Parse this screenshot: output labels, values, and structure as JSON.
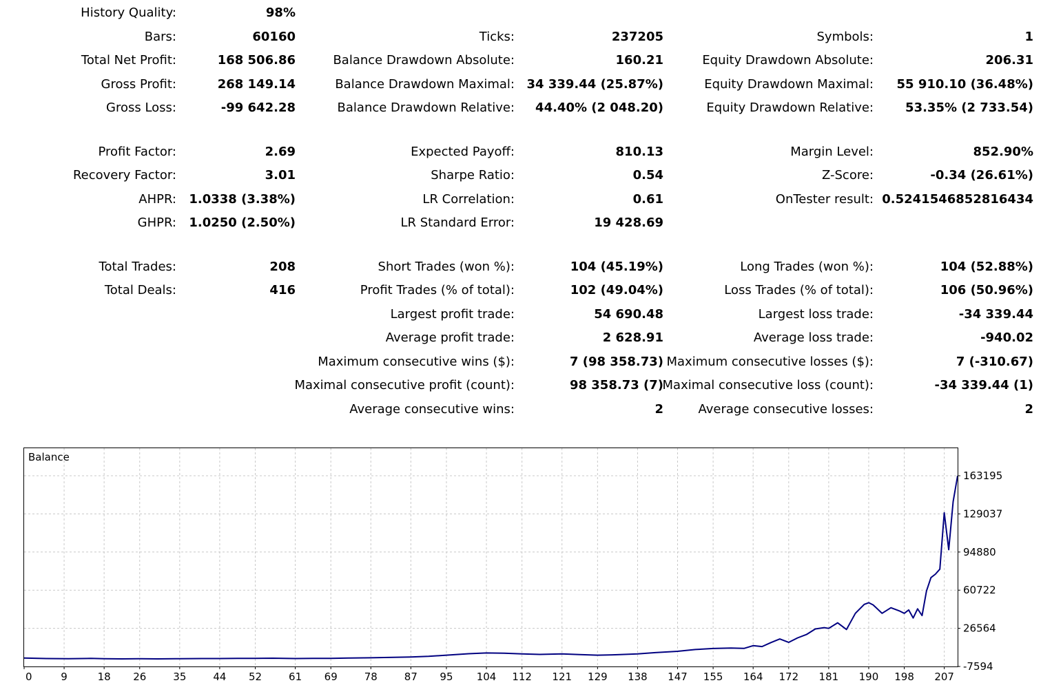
{
  "report": {
    "history_quality": {
      "label": "History Quality:",
      "value": "98%"
    },
    "bars": {
      "label": "Bars:",
      "value": "60160"
    },
    "ticks": {
      "label": "Ticks:",
      "value": "237205"
    },
    "symbols": {
      "label": "Symbols:",
      "value": "1"
    },
    "total_net_profit": {
      "label": "Total Net Profit:",
      "value": "168 506.86"
    },
    "balance_dd_abs": {
      "label": "Balance Drawdown Absolute:",
      "value": "160.21"
    },
    "equity_dd_abs": {
      "label": "Equity Drawdown Absolute:",
      "value": "206.31"
    },
    "gross_profit": {
      "label": "Gross Profit:",
      "value": "268 149.14"
    },
    "balance_dd_max": {
      "label": "Balance Drawdown Maximal:",
      "value": "34 339.44 (25.87%)"
    },
    "equity_dd_max": {
      "label": "Equity Drawdown Maximal:",
      "value": "55 910.10 (36.48%)"
    },
    "gross_loss": {
      "label": "Gross Loss:",
      "value": "-99 642.28"
    },
    "balance_dd_rel": {
      "label": "Balance Drawdown Relative:",
      "value": "44.40% (2 048.20)"
    },
    "equity_dd_rel": {
      "label": "Equity Drawdown Relative:",
      "value": "53.35% (2 733.54)"
    },
    "profit_factor": {
      "label": "Profit Factor:",
      "value": "2.69"
    },
    "expected_payoff": {
      "label": "Expected Payoff:",
      "value": "810.13"
    },
    "margin_level": {
      "label": "Margin Level:",
      "value": "852.90%"
    },
    "recovery_factor": {
      "label": "Recovery Factor:",
      "value": "3.01"
    },
    "sharpe_ratio": {
      "label": "Sharpe Ratio:",
      "value": "0.54"
    },
    "z_score": {
      "label": "Z-Score:",
      "value": "-0.34 (26.61%)"
    },
    "ahpr": {
      "label": "AHPR:",
      "value": "1.0338 (3.38%)"
    },
    "lr_correlation": {
      "label": "LR Correlation:",
      "value": "0.61"
    },
    "ontester_result": {
      "label": "OnTester result:",
      "value": "0.5241546852816434"
    },
    "ghpr": {
      "label": "GHPR:",
      "value": "1.0250 (2.50%)"
    },
    "lr_std_error": {
      "label": "LR Standard Error:",
      "value": "19 428.69"
    },
    "total_trades": {
      "label": "Total Trades:",
      "value": "208"
    },
    "short_trades": {
      "label": "Short Trades (won %):",
      "value": "104 (45.19%)"
    },
    "long_trades": {
      "label": "Long Trades (won %):",
      "value": "104 (52.88%)"
    },
    "total_deals": {
      "label": "Total Deals:",
      "value": "416"
    },
    "profit_trades": {
      "label": "Profit Trades (% of total):",
      "value": "102 (49.04%)"
    },
    "loss_trades": {
      "label": "Loss Trades (% of total):",
      "value": "106 (50.96%)"
    },
    "largest_profit": {
      "label": "Largest profit trade:",
      "value": "54 690.48"
    },
    "largest_loss": {
      "label": "Largest loss trade:",
      "value": "-34 339.44"
    },
    "avg_profit": {
      "label": "Average profit trade:",
      "value": "2 628.91"
    },
    "avg_loss": {
      "label": "Average loss trade:",
      "value": "-940.02"
    },
    "max_consec_wins": {
      "label": "Maximum consecutive wins ($):",
      "value": "7 (98 358.73)"
    },
    "max_consec_losses": {
      "label": "Maximum consecutive losses ($):",
      "value": "7 (-310.67)"
    },
    "maximal_consec_profit": {
      "label": "Maximal consecutive profit (count):",
      "value": "98 358.73 (7)"
    },
    "maximal_consec_loss": {
      "label": "Maximal consecutive loss (count):",
      "value": "-34 339.44 (1)"
    },
    "avg_consec_wins": {
      "label": "Average consecutive wins:",
      "value": "2"
    },
    "avg_consec_losses": {
      "label": "Average consecutive losses:",
      "value": "2"
    }
  },
  "chart_data": {
    "type": "line",
    "title": "Balance",
    "xlabel": "",
    "ylabel": "",
    "x_ticks": [
      "0",
      "9",
      "18",
      "26",
      "35",
      "44",
      "52",
      "61",
      "69",
      "78",
      "87",
      "95",
      "104",
      "112",
      "121",
      "129",
      "138",
      "147",
      "155",
      "164",
      "172",
      "181",
      "190",
      "198",
      "207"
    ],
    "y_ticks": [
      "163195",
      "129037",
      "94880",
      "60722",
      "26564",
      "-7594"
    ],
    "xlim": [
      0,
      210
    ],
    "ylim": [
      -7594,
      163195
    ],
    "grid": true,
    "color": "#000080",
    "series": [
      {
        "x": [
          0,
          5,
          10,
          15,
          18,
          22,
          26,
          30,
          35,
          40,
          44,
          48,
          52,
          56,
          61,
          65,
          69,
          73,
          78,
          83,
          87,
          91,
          95,
          100,
          104,
          108,
          112,
          116,
          121,
          125,
          129,
          133,
          138,
          142,
          147,
          151,
          155,
          159,
          162,
          164,
          166,
          168,
          170,
          172,
          174,
          176,
          178,
          180,
          181,
          183,
          185,
          187,
          189,
          190,
          191,
          193,
          195,
          197,
          198,
          199,
          200,
          201,
          202,
          203,
          204,
          205,
          206,
          207,
          208,
          209,
          210
        ],
        "y": [
          0,
          -500,
          -600,
          -400,
          -700,
          -800,
          -700,
          -800,
          -600,
          -500,
          -500,
          -400,
          -300,
          -200,
          -500,
          -400,
          -300,
          -100,
          200,
          600,
          900,
          1500,
          2500,
          3800,
          4500,
          4300,
          3700,
          3200,
          3600,
          3000,
          2500,
          2900,
          3600,
          4800,
          6000,
          7600,
          8500,
          8900,
          8600,
          11000,
          10200,
          13800,
          17000,
          14000,
          18000,
          21000,
          26000,
          27200,
          26500,
          31500,
          25500,
          40000,
          48000,
          49500,
          47500,
          40000,
          45000,
          42000,
          40000,
          43000,
          35800,
          44000,
          38000,
          60000,
          72000,
          75000,
          79500,
          130000,
          97000,
          140000,
          163195
        ]
      }
    ]
  }
}
